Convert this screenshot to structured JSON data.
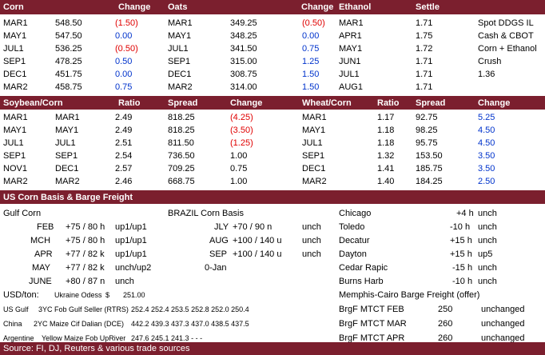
{
  "corn": {
    "headers": [
      "Corn",
      "Change"
    ],
    "rows": [
      {
        "month": "MAR1",
        "price": "548.50",
        "change": "(1.50)",
        "dir": "red"
      },
      {
        "month": "MAY1",
        "price": "547.50",
        "change": "0.00",
        "dir": "blue"
      },
      {
        "month": "JUL1",
        "price": "536.25",
        "change": "(0.50)",
        "dir": "red"
      },
      {
        "month": "SEP1",
        "price": "478.25",
        "change": "0.50",
        "dir": "blue"
      },
      {
        "month": "DEC1",
        "price": "451.75",
        "change": "0.00",
        "dir": "blue"
      },
      {
        "month": "MAR2",
        "price": "458.75",
        "change": "0.75",
        "dir": "blue"
      }
    ]
  },
  "oats": {
    "headers": [
      "Oats",
      "Change"
    ],
    "rows": [
      {
        "month": "MAR1",
        "price": "349.25",
        "change": "(0.50)",
        "dir": "red"
      },
      {
        "month": "MAY1",
        "price": "348.25",
        "change": "0.00",
        "dir": "blue"
      },
      {
        "month": "JUL1",
        "price": "341.50",
        "change": "0.75",
        "dir": "blue"
      },
      {
        "month": "SEP1",
        "price": "315.00",
        "change": "1.25",
        "dir": "blue"
      },
      {
        "month": "DEC1",
        "price": "308.75",
        "change": "1.50",
        "dir": "blue"
      },
      {
        "month": "MAR2",
        "price": "314.00",
        "change": "1.50",
        "dir": "blue"
      }
    ]
  },
  "ethanol": {
    "headers": [
      "Ethanol",
      "Settle"
    ],
    "rows": [
      {
        "month": "MAR1",
        "settle": "1.71"
      },
      {
        "month": "APR1",
        "settle": "1.75"
      },
      {
        "month": "MAY1",
        "settle": "1.72"
      },
      {
        "month": "JUN1",
        "settle": "1.71"
      },
      {
        "month": "JUL1",
        "settle": "1.71"
      },
      {
        "month": "AUG1",
        "settle": "1.71"
      }
    ]
  },
  "ddgs": {
    "lines": [
      "Spot DDGS IL",
      "Cash & CBOT",
      "Corn + Ethanol",
      "Crush",
      "1.36"
    ]
  },
  "soy_corn": {
    "headers": [
      "Soybean/Corn",
      "Ratio",
      "Spread",
      "Change"
    ],
    "rows": [
      {
        "soy": "MAR1",
        "corn": "MAR1",
        "ratio": "2.49",
        "spread": "818.25",
        "change": "(4.25)",
        "dir": "red"
      },
      {
        "soy": "MAY1",
        "corn": "MAY1",
        "ratio": "2.49",
        "spread": "818.25",
        "change": "(3.50)",
        "dir": "red"
      },
      {
        "soy": "JUL1",
        "corn": "JUL1",
        "ratio": "2.51",
        "spread": "811.50",
        "change": "(1.25)",
        "dir": "red"
      },
      {
        "soy": "SEP1",
        "corn": "SEP1",
        "ratio": "2.54",
        "spread": "736.50",
        "change": "1.00",
        "dir": "black"
      },
      {
        "soy": "NOV1",
        "corn": "DEC1",
        "ratio": "2.57",
        "spread": "709.25",
        "change": "0.75",
        "dir": "black"
      },
      {
        "soy": "MAR2",
        "corn": "MAR2",
        "ratio": "2.46",
        "spread": "668.75",
        "change": "1.00",
        "dir": "black"
      }
    ]
  },
  "wheat_corn": {
    "headers": [
      "Wheat/Corn",
      "Ratio",
      "Spread",
      "Change"
    ],
    "rows": [
      {
        "month": "MAR1",
        "ratio": "1.17",
        "spread": "92.75",
        "change": "5.25"
      },
      {
        "month": "MAY1",
        "ratio": "1.18",
        "spread": "98.25",
        "change": "4.50"
      },
      {
        "month": "JUL1",
        "ratio": "1.18",
        "spread": "95.75",
        "change": "4.50"
      },
      {
        "month": "SEP1",
        "ratio": "1.32",
        "spread": "153.50",
        "change": "3.50"
      },
      {
        "month": "DEC1",
        "ratio": "1.41",
        "spread": "185.75",
        "change": "3.50"
      },
      {
        "month": "MAR2",
        "ratio": "1.40",
        "spread": "184.25",
        "change": "2.50"
      }
    ]
  },
  "basis": {
    "section_title": "US Corn Basis & Barge Freight",
    "gulf_title": "Gulf Corn",
    "gulf": [
      {
        "month": "FEB",
        "bid": "+75 / 80 h",
        "chg": "up1/up1"
      },
      {
        "month": "MCH",
        "bid": "+75 / 80 h",
        "chg": "up1/up1"
      },
      {
        "month": "APR",
        "bid": "+77 / 82 k",
        "chg": "up1/up1"
      },
      {
        "month": "MAY",
        "bid": "+77 / 82 k",
        "chg": "unch/up2"
      },
      {
        "month": "JUNE",
        "bid": "+80 / 87 n",
        "chg": "unch"
      }
    ],
    "brazil_title": "BRAZIL Corn Basis",
    "brazil": [
      {
        "month": "JLY",
        "bid": "+70 / 90 n",
        "chg": "unch"
      },
      {
        "month": "AUG",
        "bid": "+100 / 140 u",
        "chg": "unch"
      },
      {
        "month": "SEP",
        "bid": "+100 / 140 u",
        "chg": "unch"
      },
      {
        "month": "0-Jan",
        "bid": "",
        "chg": ""
      }
    ],
    "interior": [
      {
        "place": "Chicago",
        "bid": "+4 h",
        "chg": "unch"
      },
      {
        "place": "Toledo",
        "bid": "-10 h",
        "chg": "unch"
      },
      {
        "place": "Decatur",
        "bid": "+15 h",
        "chg": "unch"
      },
      {
        "place": "Dayton",
        "bid": "+15 h",
        "chg": "up5"
      },
      {
        "place": "Cedar Rapic",
        "bid": "-15 h",
        "chg": "unch"
      },
      {
        "place": "Burns Harb",
        "bid": "-10 h",
        "chg": "unch"
      }
    ]
  },
  "usd_ton": {
    "label": "USD/ton:",
    "ukraine_label": "Ukraine Odess",
    "ukraine_cur": "$",
    "ukraine_value": "251.00",
    "rows": [
      {
        "origin": "US Gulf",
        "desc": "3YC Fob Gulf Seller (RTRS)",
        "vals": "252.4  252.4  253.5  252.8  252.0  250.4"
      },
      {
        "origin": "China",
        "desc": "2YC Maize Cif Dalian (DCE)",
        "vals": "442.2  439.3  437.3  437.0  438.5  437.5"
      },
      {
        "origin": "Argentine",
        "desc": "Yellow Maize Fob UpRiver",
        "vals": "247.6  245.1  241.3    -     -     -"
      }
    ]
  },
  "barge": {
    "title": "Memphis-Cairo Barge Freight (offer)",
    "rows": [
      {
        "label": "BrgF MTCT FEB",
        "value": "250",
        "chg": "unchanged"
      },
      {
        "label": "BrgF MTCT MAR",
        "value": "260",
        "chg": "unchanged"
      },
      {
        "label": "BrgF MTCT APR",
        "value": "260",
        "chg": "unchanged"
      }
    ]
  },
  "footer": {
    "source": "Source: FI, DJ, Reuters & various trade sources"
  },
  "colors": {
    "header_bg": "#7b1f2e",
    "negative": "#e00000",
    "positive": "#0033cc"
  }
}
